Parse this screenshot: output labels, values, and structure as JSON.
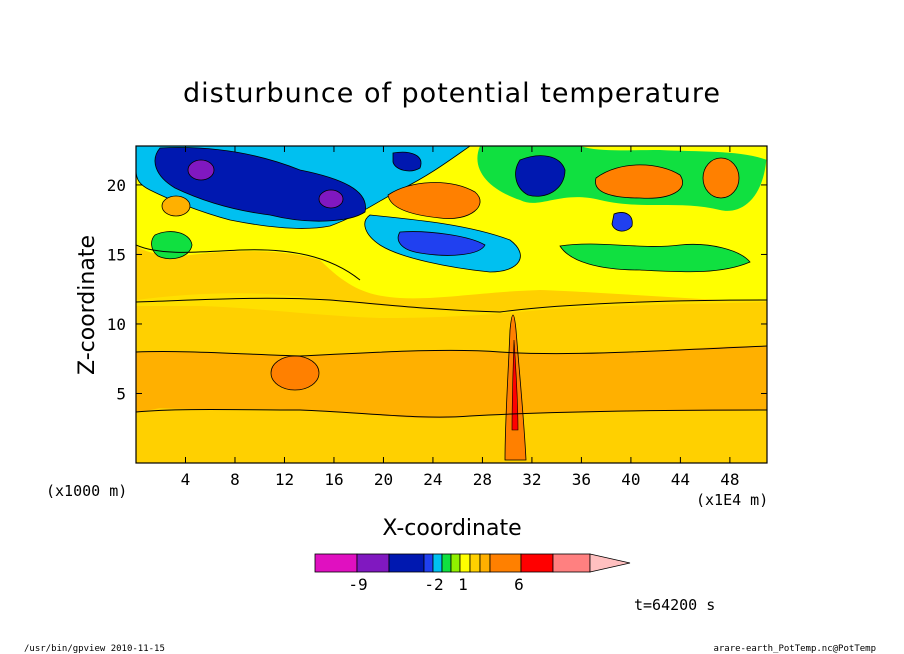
{
  "chart_data": {
    "type": "heatmap",
    "title": "disturbunce of potential temperature",
    "xlabel": "X-coordinate",
    "ylabel": "Z-coordinate",
    "x_unit_left": "(x1000 m)",
    "x_unit_right": "(x1E4 m)",
    "xticks": [
      "4",
      "8",
      "12",
      "16",
      "20",
      "24",
      "28",
      "32",
      "36",
      "40",
      "44",
      "48"
    ],
    "xtick_values": [
      4,
      8,
      12,
      16,
      20,
      24,
      28,
      32,
      36,
      40,
      44,
      48
    ],
    "xlim": [
      0,
      51
    ],
    "yticks": [
      "5",
      "10",
      "15",
      "20"
    ],
    "ytick_values": [
      5,
      10,
      15,
      20
    ],
    "ylim": [
      0,
      22.8
    ],
    "colorbar": {
      "colors": [
        "#e010c0",
        "#8018c0",
        "#0018b0",
        "#2040f0",
        "#00c0f0",
        "#10e040",
        "#90f000",
        "#ffff00",
        "#ffd000",
        "#ffb000",
        "#ff8000",
        "#ff0000",
        "#ff8080",
        "#ffc0c0"
      ],
      "labels": [
        "-9",
        "-2",
        "1",
        "6"
      ],
      "label_values": [
        -9,
        -2,
        1,
        6
      ]
    },
    "time_label": "t=64200 s",
    "regions": [
      {
        "level": "0.5",
        "color": "#ffd000"
      },
      {
        "level": "2",
        "color": "#ff8000"
      },
      {
        "level": "-6",
        "color": "#0018b0"
      },
      {
        "level": "-9",
        "color": "#8018c0"
      }
    ]
  },
  "footer": {
    "left": "/usr/bin/gpview   2010-11-15",
    "right": "arare-earth_PotTemp.nc@PotTemp"
  }
}
